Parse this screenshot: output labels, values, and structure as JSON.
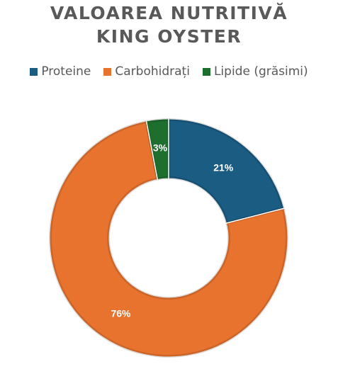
{
  "chart_data": {
    "type": "pie",
    "title_lines": [
      "VALOAREA NUTRITIVĂ",
      "KING OYSTER"
    ],
    "legend_position": "top",
    "slices": [
      {
        "name": "Proteine",
        "value": 21,
        "label": "21%",
        "color": "#1b5c82"
      },
      {
        "name": "Carbohidrați",
        "value": 76,
        "label": "76%",
        "color": "#e8732f"
      },
      {
        "name": "Lipide (grăsimi)",
        "value": 3,
        "label": "3%",
        "color": "#1e6e2e"
      }
    ],
    "donut": true
  }
}
